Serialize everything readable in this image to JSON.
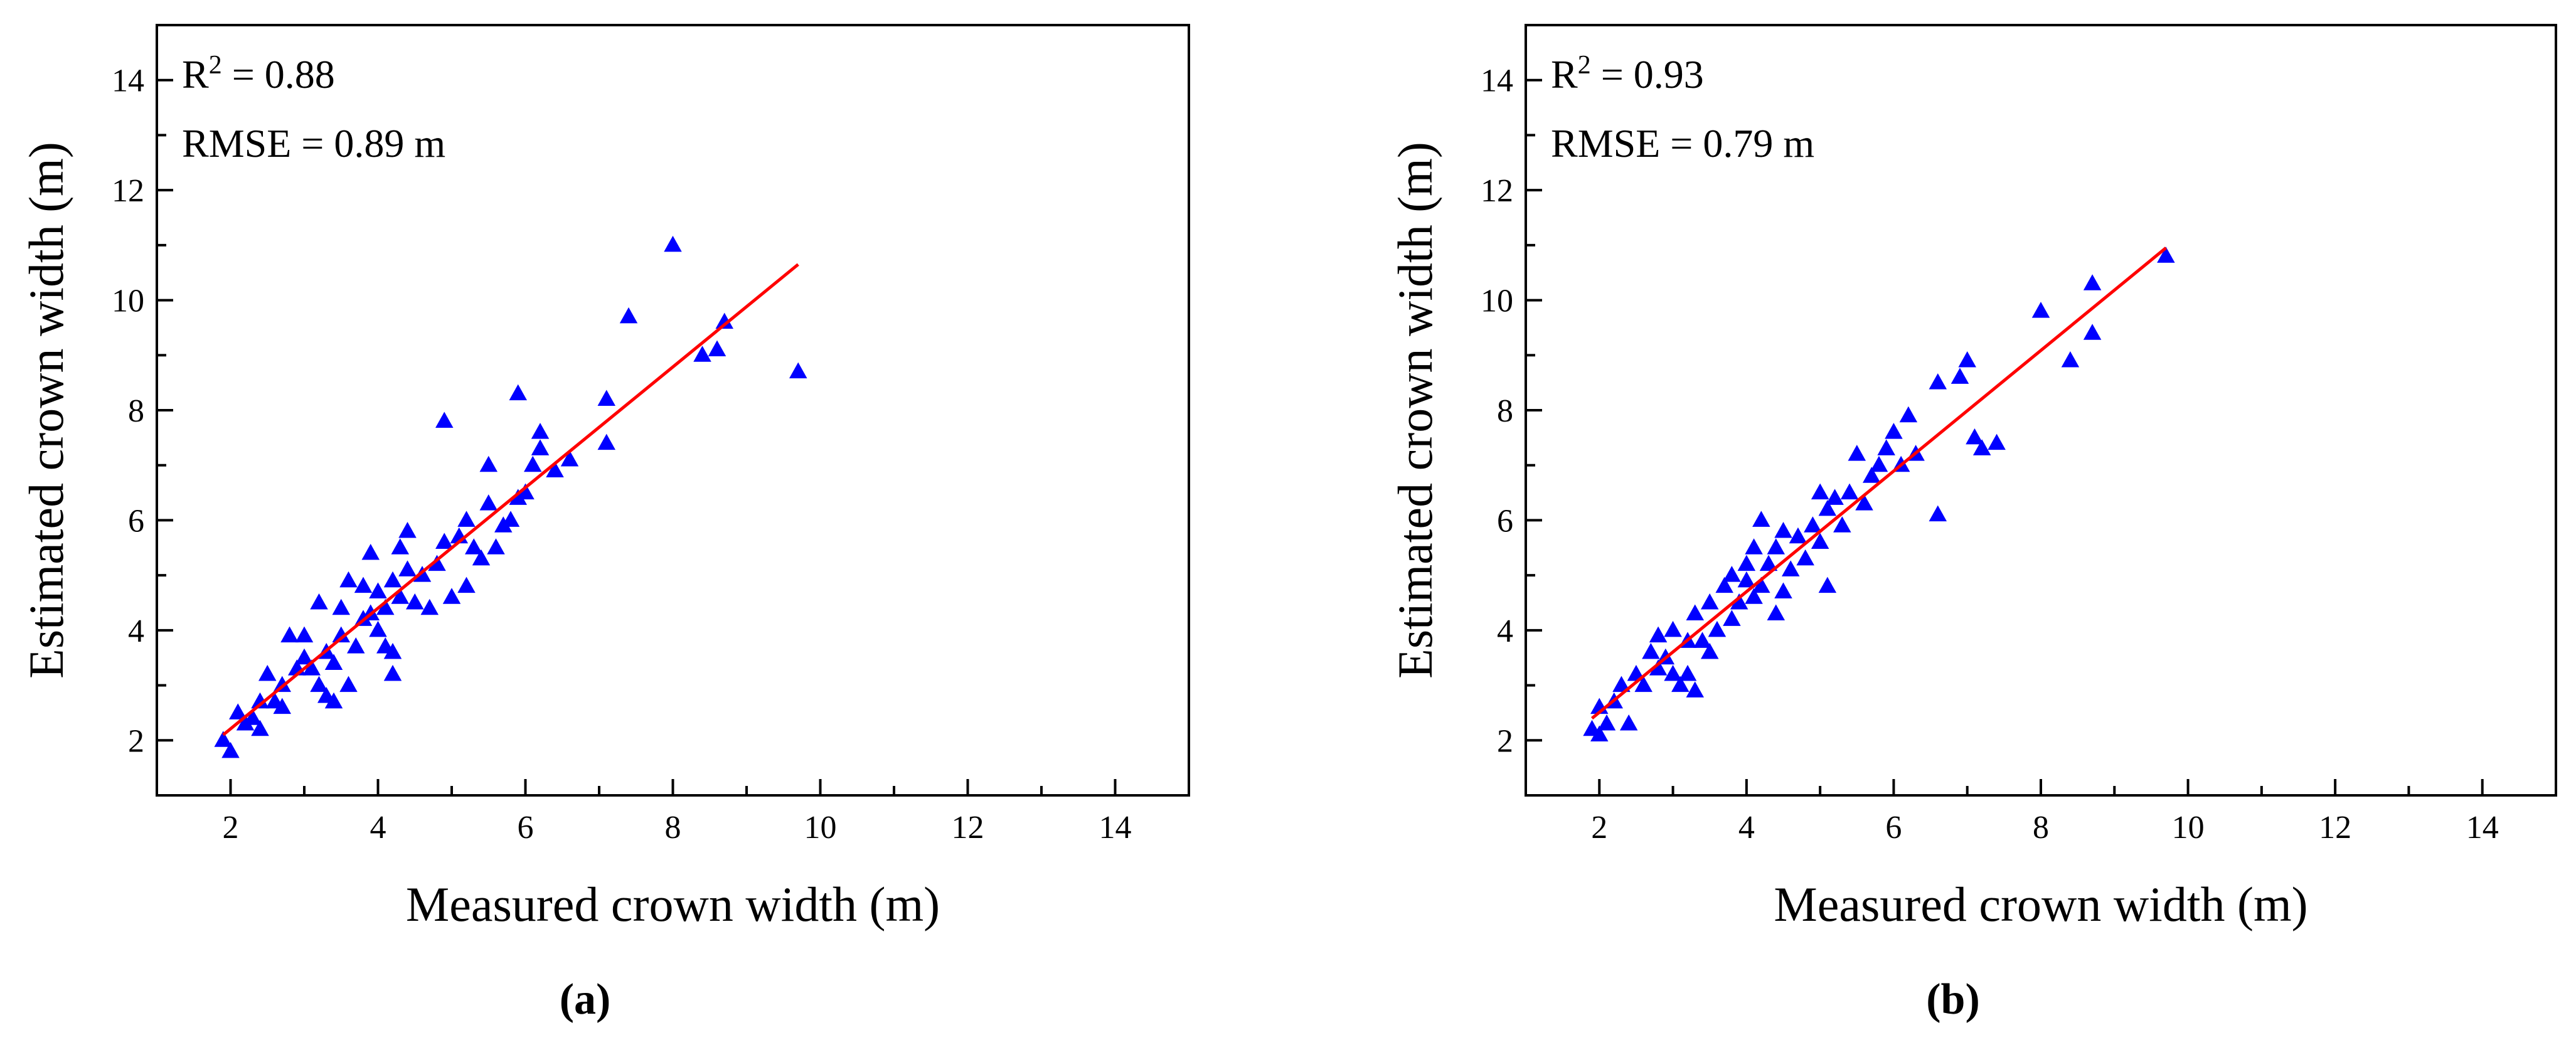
{
  "figure": {
    "panels": [
      {
        "label": "(a)",
        "r2_prefix": "R",
        "r2_sup": "2",
        "r2_value": " = 0.88",
        "rmse_text": "RMSE = 0.89 m"
      },
      {
        "label": "(b)",
        "r2_prefix": "R",
        "r2_sup": "2",
        "r2_value": " = 0.93",
        "rmse_text": "RMSE = 0.79 m"
      }
    ]
  },
  "chart_data": [
    {
      "type": "scatter",
      "panel_label": "(a)",
      "xlabel": "Measured crown width (m)",
      "ylabel": "Estimated crown width (m)",
      "xlim": [
        1,
        15
      ],
      "ylim": [
        1,
        15
      ],
      "xticks": [
        2,
        4,
        6,
        8,
        10,
        12,
        14
      ],
      "yticks": [
        2,
        4,
        6,
        8,
        10,
        12,
        14
      ],
      "grid": false,
      "annotations": [
        "R² = 0.88",
        "RMSE = 0.89 m"
      ],
      "marker_color": "#0000ff",
      "line_color": "#ff0000",
      "fit_line": {
        "x": [
          1.9,
          9.7
        ],
        "y": [
          2.1,
          10.65
        ]
      },
      "points": [
        [
          1.9,
          2.0
        ],
        [
          2.0,
          1.8
        ],
        [
          2.1,
          2.5
        ],
        [
          2.2,
          2.3
        ],
        [
          2.3,
          2.4
        ],
        [
          2.4,
          2.2
        ],
        [
          2.4,
          2.7
        ],
        [
          2.5,
          3.2
        ],
        [
          2.6,
          2.7
        ],
        [
          2.7,
          2.6
        ],
        [
          2.7,
          3.0
        ],
        [
          2.8,
          3.9
        ],
        [
          2.9,
          3.3
        ],
        [
          3.0,
          3.5
        ],
        [
          3.0,
          3.9
        ],
        [
          3.1,
          3.3
        ],
        [
          3.2,
          3.0
        ],
        [
          3.2,
          4.5
        ],
        [
          3.3,
          2.8
        ],
        [
          3.3,
          3.6
        ],
        [
          3.4,
          2.7
        ],
        [
          3.4,
          3.4
        ],
        [
          3.5,
          3.9
        ],
        [
          3.5,
          4.4
        ],
        [
          3.6,
          3.0
        ],
        [
          3.6,
          4.9
        ],
        [
          3.7,
          3.7
        ],
        [
          3.8,
          4.2
        ],
        [
          3.8,
          4.8
        ],
        [
          3.9,
          4.3
        ],
        [
          3.9,
          5.4
        ],
        [
          4.0,
          4.0
        ],
        [
          4.0,
          4.7
        ],
        [
          4.1,
          3.7
        ],
        [
          4.1,
          4.4
        ],
        [
          4.2,
          3.2
        ],
        [
          4.2,
          3.6
        ],
        [
          4.2,
          4.9
        ],
        [
          4.3,
          4.6
        ],
        [
          4.3,
          5.5
        ],
        [
          4.4,
          5.1
        ],
        [
          4.4,
          5.8
        ],
        [
          4.5,
          4.5
        ],
        [
          4.6,
          5.0
        ],
        [
          4.7,
          4.4
        ],
        [
          4.8,
          5.2
        ],
        [
          4.9,
          5.6
        ],
        [
          4.9,
          7.8
        ],
        [
          5.0,
          4.6
        ],
        [
          5.1,
          5.7
        ],
        [
          5.2,
          4.8
        ],
        [
          5.2,
          6.0
        ],
        [
          5.3,
          5.5
        ],
        [
          5.4,
          5.3
        ],
        [
          5.5,
          6.3
        ],
        [
          5.5,
          7.0
        ],
        [
          5.6,
          5.5
        ],
        [
          5.7,
          5.9
        ],
        [
          5.8,
          6.0
        ],
        [
          5.9,
          6.4
        ],
        [
          5.9,
          8.3
        ],
        [
          6.0,
          6.5
        ],
        [
          6.1,
          7.0
        ],
        [
          6.2,
          7.3
        ],
        [
          6.2,
          7.6
        ],
        [
          6.4,
          6.9
        ],
        [
          6.6,
          7.1
        ],
        [
          7.1,
          7.4
        ],
        [
          7.1,
          8.2
        ],
        [
          7.4,
          9.7
        ],
        [
          8.0,
          11.0
        ],
        [
          8.4,
          9.0
        ],
        [
          8.6,
          9.1
        ],
        [
          8.7,
          9.6
        ],
        [
          9.7,
          8.7
        ]
      ]
    },
    {
      "type": "scatter",
      "panel_label": "(b)",
      "xlabel": "Measured crown width (m)",
      "ylabel": "Estimated crown width (m)",
      "xlim": [
        1,
        15
      ],
      "ylim": [
        1,
        15
      ],
      "xticks": [
        2,
        4,
        6,
        8,
        10,
        12,
        14
      ],
      "yticks": [
        2,
        4,
        6,
        8,
        10,
        12,
        14
      ],
      "grid": false,
      "annotations": [
        "R² = 0.93",
        "RMSE = 0.79 m"
      ],
      "marker_color": "#0000ff",
      "line_color": "#ff0000",
      "fit_line": {
        "x": [
          1.9,
          9.7
        ],
        "y": [
          2.4,
          10.95
        ]
      },
      "points": [
        [
          1.9,
          2.2
        ],
        [
          2.0,
          2.1
        ],
        [
          2.0,
          2.6
        ],
        [
          2.1,
          2.3
        ],
        [
          2.2,
          2.7
        ],
        [
          2.3,
          3.0
        ],
        [
          2.4,
          2.3
        ],
        [
          2.5,
          3.2
        ],
        [
          2.6,
          3.0
        ],
        [
          2.7,
          3.6
        ],
        [
          2.8,
          3.3
        ],
        [
          2.8,
          3.9
        ],
        [
          2.9,
          3.5
        ],
        [
          3.0,
          3.2
        ],
        [
          3.0,
          4.0
        ],
        [
          3.1,
          3.0
        ],
        [
          3.2,
          3.2
        ],
        [
          3.2,
          3.8
        ],
        [
          3.3,
          2.9
        ],
        [
          3.3,
          4.3
        ],
        [
          3.4,
          3.8
        ],
        [
          3.5,
          3.6
        ],
        [
          3.5,
          4.5
        ],
        [
          3.6,
          4.0
        ],
        [
          3.7,
          4.8
        ],
        [
          3.8,
          4.2
        ],
        [
          3.8,
          5.0
        ],
        [
          3.9,
          4.5
        ],
        [
          4.0,
          4.9
        ],
        [
          4.0,
          5.2
        ],
        [
          4.1,
          4.6
        ],
        [
          4.1,
          5.5
        ],
        [
          4.2,
          4.8
        ],
        [
          4.2,
          6.0
        ],
        [
          4.3,
          5.2
        ],
        [
          4.4,
          4.3
        ],
        [
          4.4,
          5.5
        ],
        [
          4.5,
          4.7
        ],
        [
          4.5,
          5.8
        ],
        [
          4.6,
          5.1
        ],
        [
          4.7,
          5.7
        ],
        [
          4.8,
          5.3
        ],
        [
          4.9,
          5.9
        ],
        [
          5.0,
          5.6
        ],
        [
          5.0,
          6.5
        ],
        [
          5.1,
          4.8
        ],
        [
          5.1,
          6.2
        ],
        [
          5.2,
          6.4
        ],
        [
          5.3,
          5.9
        ],
        [
          5.4,
          6.5
        ],
        [
          5.5,
          7.2
        ],
        [
          5.6,
          6.3
        ],
        [
          5.7,
          6.8
        ],
        [
          5.8,
          7.0
        ],
        [
          5.9,
          7.3
        ],
        [
          6.0,
          7.6
        ],
        [
          6.1,
          7.0
        ],
        [
          6.2,
          7.9
        ],
        [
          6.3,
          7.2
        ],
        [
          6.6,
          6.1
        ],
        [
          6.6,
          8.5
        ],
        [
          6.9,
          8.6
        ],
        [
          7.0,
          8.9
        ],
        [
          7.1,
          7.5
        ],
        [
          7.2,
          7.3
        ],
        [
          7.4,
          7.4
        ],
        [
          8.0,
          9.8
        ],
        [
          8.4,
          8.9
        ],
        [
          8.7,
          9.4
        ],
        [
          8.7,
          10.3
        ],
        [
          9.7,
          10.8
        ]
      ]
    }
  ]
}
